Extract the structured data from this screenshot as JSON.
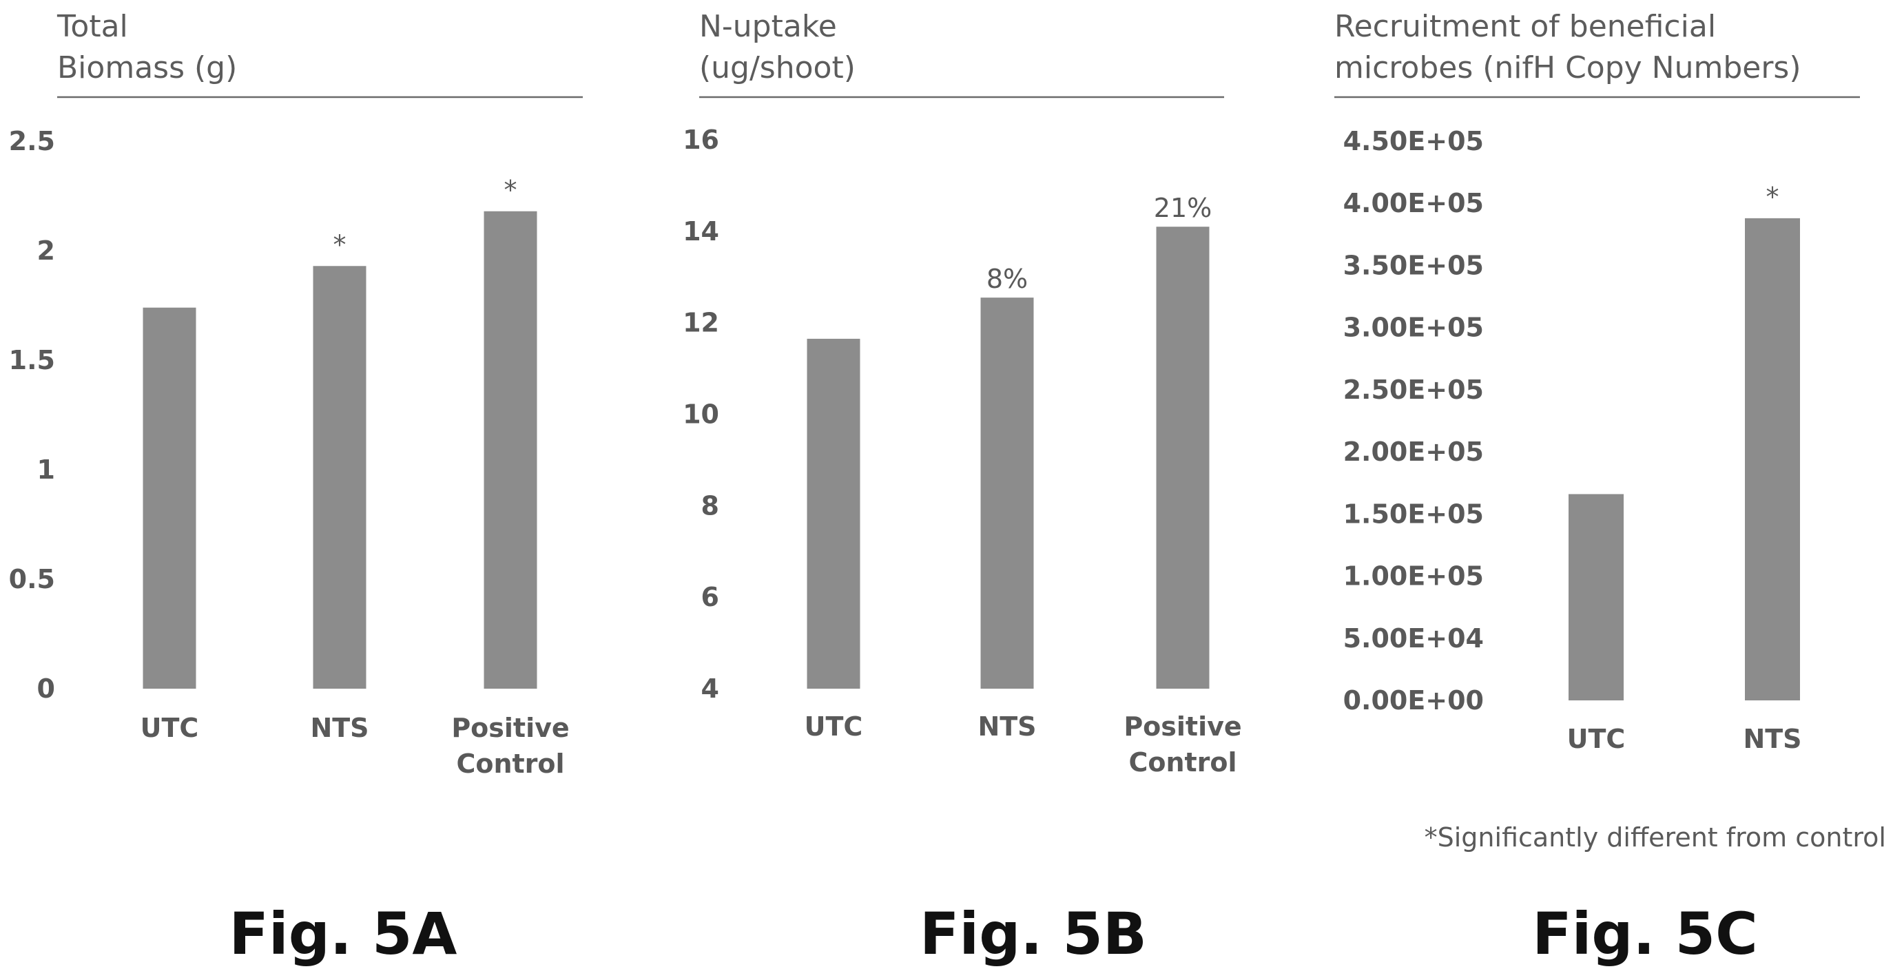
{
  "footnote": "*Significantly different from control",
  "chart_data": [
    {
      "type": "bar",
      "figure_label": "Fig. 5A",
      "title": [
        "Total",
        "Biomass (g)"
      ],
      "categories": [
        "UTC",
        "NTS",
        "Positive Control"
      ],
      "category_lines": [
        [
          "UTC"
        ],
        [
          "NTS"
        ],
        [
          "Positive",
          "Control"
        ]
      ],
      "values": [
        1.74,
        1.93,
        2.18
      ],
      "data_labels": [
        "",
        "*",
        "*"
      ],
      "ylim": [
        0,
        2.5
      ],
      "yticks": [
        "0",
        "0.5",
        "1",
        "1.5",
        "2",
        "2.5"
      ],
      "grid": false,
      "bar_color": "#8c8c8c"
    },
    {
      "type": "bar",
      "figure_label": "Fig. 5B",
      "title": [
        "N-uptake",
        "(ug/shoot)"
      ],
      "categories": [
        "UTC",
        "NTS",
        "Positive Control"
      ],
      "category_lines": [
        [
          "UTC"
        ],
        [
          "NTS"
        ],
        [
          "Positive",
          "Control"
        ]
      ],
      "values": [
        11.65,
        12.55,
        14.1
      ],
      "data_labels": [
        "",
        "8%",
        "21%"
      ],
      "ylim": [
        4,
        16
      ],
      "yticks": [
        "4",
        "6",
        "8",
        "10",
        "12",
        "14",
        "16"
      ],
      "grid": false,
      "bar_color": "#8c8c8c"
    },
    {
      "type": "bar",
      "figure_label": "Fig. 5C",
      "title": [
        "Recruitment of beneficial",
        "microbes (nifH Copy Numbers)"
      ],
      "categories": [
        "UTC",
        "NTS"
      ],
      "category_lines": [
        [
          "UTC"
        ],
        [
          "NTS"
        ]
      ],
      "values": [
        166000,
        388000
      ],
      "data_labels": [
        "",
        "*"
      ],
      "ylim": [
        0,
        450000
      ],
      "yticks": [
        "0.00E+00",
        "5.00E+04",
        "1.00E+05",
        "1.50E+05",
        "2.00E+05",
        "2.50E+05",
        "3.00E+05",
        "3.50E+05",
        "4.00E+05",
        "4.50E+05"
      ],
      "grid": false,
      "bar_color": "#8c8c8c"
    }
  ]
}
